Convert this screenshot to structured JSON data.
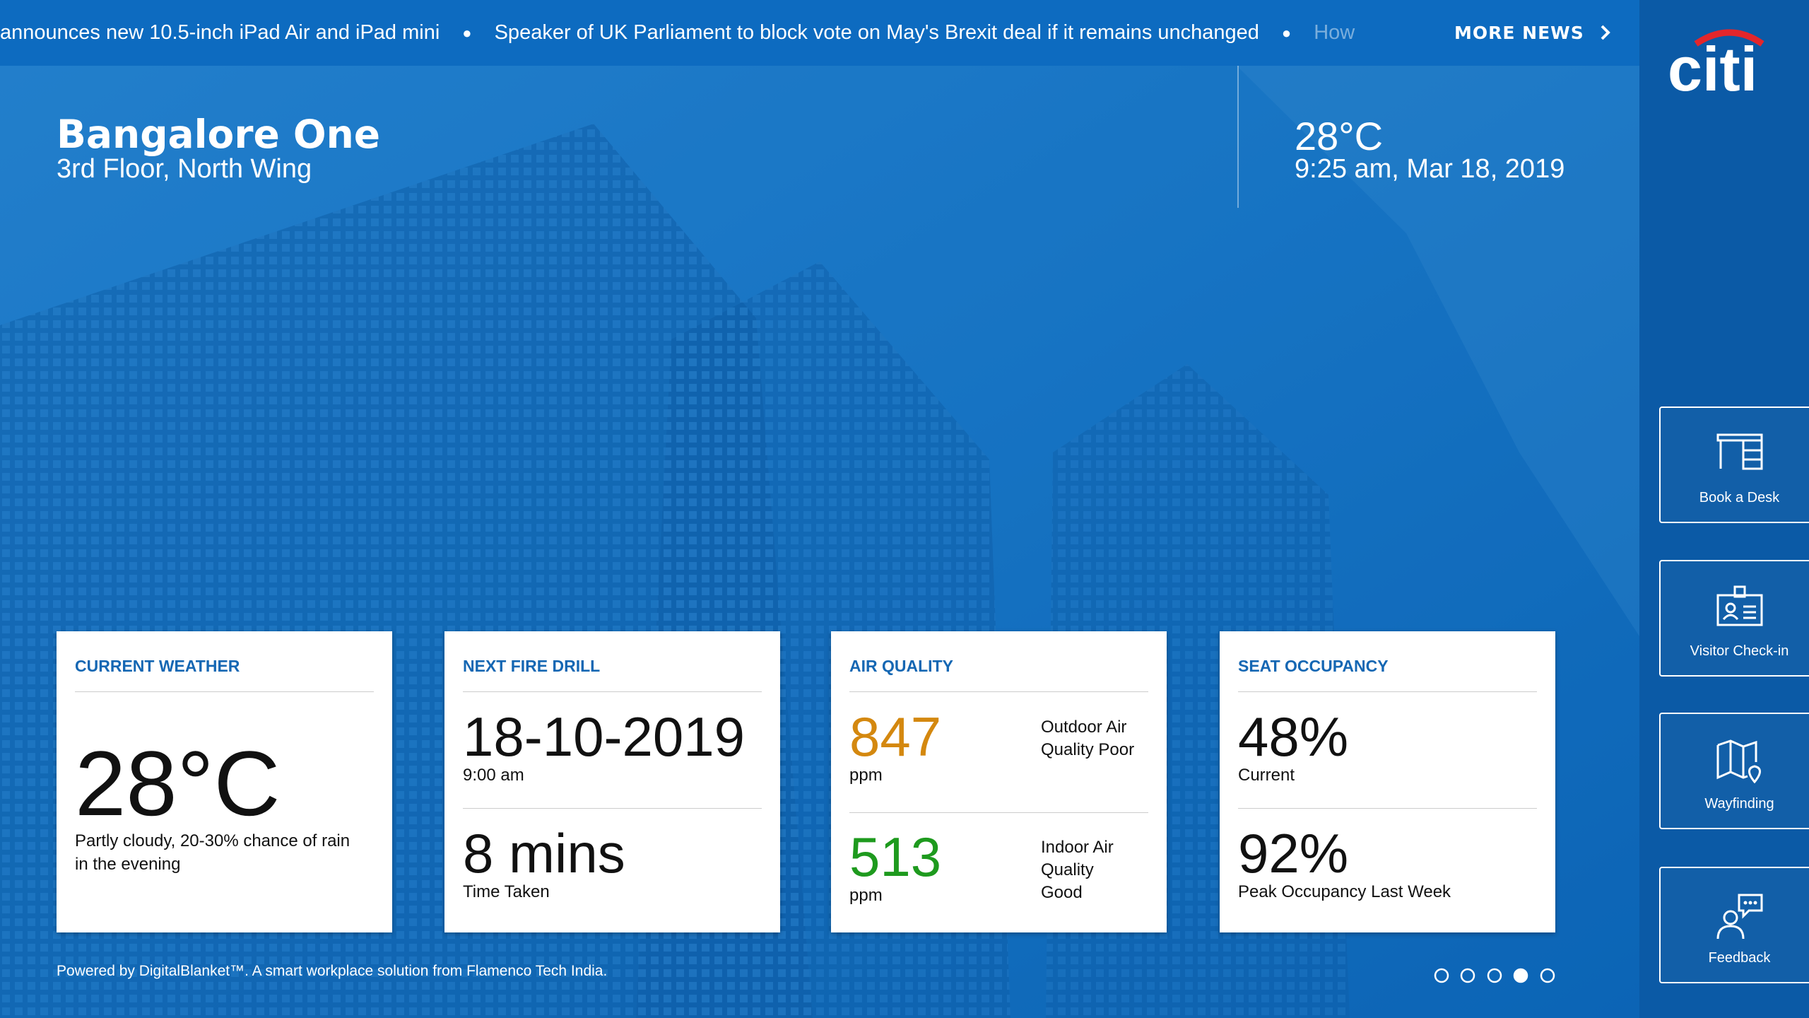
{
  "ticker": {
    "items": [
      "announces new 10.5-inch iPad Air and iPad mini",
      "Speaker of UK Parliament to block vote on May's Brexit deal if it remains unchanged",
      "How"
    ],
    "more": "MORE NEWS"
  },
  "header": {
    "title": "Bangalore One",
    "subtitle": "3rd Floor, North Wing",
    "temperature": "28°C",
    "datetime": "9:25 am, Mar 18, 2019"
  },
  "brand": "citi",
  "cards": [
    {
      "title": "CURRENT WEATHER",
      "value": "28°C",
      "description": "Partly cloudy, 20-30% chance of rain in the evening"
    },
    {
      "title": "NEXT FIRE DRILL",
      "rows": [
        {
          "value": "18-10-2019",
          "label": "9:00 am"
        },
        {
          "value": "8 mins",
          "label": "Time Taken"
        }
      ]
    },
    {
      "title": "AIR QUALITY",
      "rows": [
        {
          "value": "847",
          "unit": "ppm",
          "note": "Outdoor Air Quality Poor"
        },
        {
          "value": "513",
          "unit": "ppm",
          "note": "Indoor Air Quality Good"
        }
      ]
    },
    {
      "title": "SEAT OCCUPANCY",
      "rows": [
        {
          "value": "48%",
          "label": "Current"
        },
        {
          "value": "92%",
          "label": "Peak Occupancy Last Week"
        }
      ]
    }
  ],
  "footer": "Powered by DigitalBlanket™. A smart workplace solution from Flamenco Tech India.",
  "sidebar": [
    "Book a Desk",
    "Visitor Check-in",
    "Wayfinding",
    "Feedback"
  ]
}
